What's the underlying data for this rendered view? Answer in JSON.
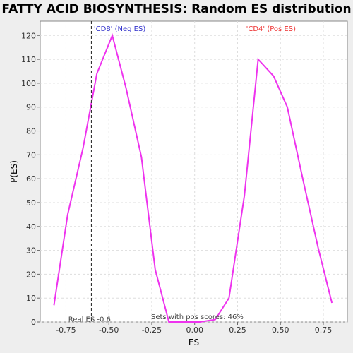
{
  "chart_data": {
    "type": "line",
    "title": "FATTY ACID BIOSYNTHESIS: Random ES distribution",
    "xlabel": "ES",
    "ylabel": "P(ES)",
    "xlim": [
      -0.9,
      0.89
    ],
    "ylim": [
      0,
      126
    ],
    "xticks": [
      -0.75,
      -0.5,
      -0.25,
      0.0,
      0.25,
      0.5,
      0.75
    ],
    "xtick_labels": [
      "-0.75",
      "-0.50",
      "-0.25",
      "0.00",
      "0.25",
      "0.50",
      "0.75"
    ],
    "yticks": [
      0,
      10,
      20,
      30,
      40,
      50,
      60,
      70,
      80,
      90,
      100,
      110,
      120
    ],
    "grid": true,
    "series": [
      {
        "color": "#ee33ee",
        "x": [
          -0.82,
          -0.74,
          -0.65,
          -0.57,
          -0.48,
          -0.4,
          -0.31,
          -0.23,
          -0.15,
          -0.06,
          0.03,
          0.12,
          0.2,
          0.29,
          0.37,
          0.46,
          0.54,
          0.63,
          0.72,
          0.8
        ],
        "y": [
          7,
          45,
          73,
          104,
          120,
          98,
          69,
          22,
          0,
          0,
          0,
          1,
          10,
          53,
          110,
          103,
          90,
          60,
          31,
          8
        ]
      }
    ],
    "real_es": {
      "value": -0.6,
      "label": "Real ES -0.6"
    },
    "annotations": {
      "neg": {
        "text": "'CD8' (Neg ES)",
        "color": "#3333cc"
      },
      "pos": {
        "text": "'CD4' (Pos ES)",
        "color": "#ee3333"
      },
      "pos_scores": "Sets with pos scores: 46%"
    }
  }
}
